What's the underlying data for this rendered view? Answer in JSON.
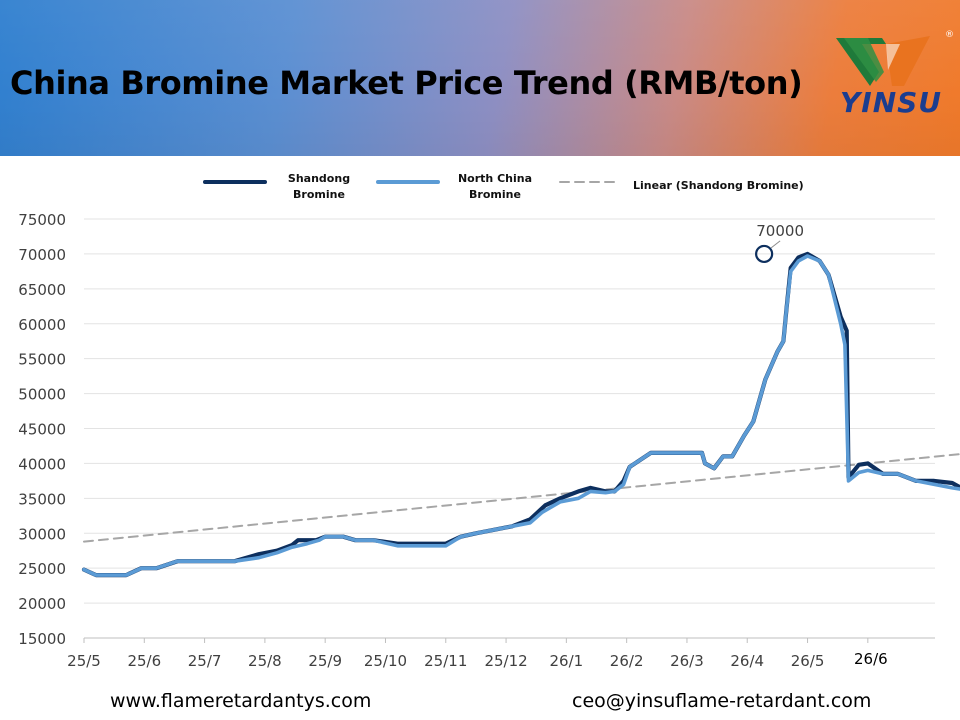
{
  "header": {
    "title": "China Bromine Market Price Trend (RMB/ton)",
    "logo_text": "YINSU",
    "logo_mark": "®",
    "colors": {
      "gradient_left": "#2f7fcf",
      "gradient_right": "#f07a2a",
      "logo_green": "#1f7a3a",
      "logo_orange": "#e9731f",
      "logo_text": "#1b3d8f"
    }
  },
  "footer": {
    "website": "www.flameretardantys.com",
    "email": "ceo@yinsuflame-retardant.com"
  },
  "chart_data": {
    "type": "line",
    "title": "",
    "xlabel": "",
    "ylabel": "",
    "ylim": [
      15000,
      75000
    ],
    "y_ticks": [
      15000,
      20000,
      25000,
      30000,
      35000,
      40000,
      45000,
      50000,
      55000,
      60000,
      65000,
      70000,
      75000
    ],
    "x_tick_labels": [
      "25/5",
      "25/6",
      "25/7",
      "25/8",
      "25/9",
      "25/10",
      "25/11",
      "25/12",
      "26/1",
      "26/2",
      "26/3",
      "26/4",
      "26/5",
      "26/6"
    ],
    "grid": true,
    "legend_position": "top",
    "annotation": {
      "label": "70000",
      "x": 11.28,
      "y": 70000
    },
    "series": [
      {
        "name": "Shandong Bromine",
        "color": "#0d2f5e",
        "points": [
          [
            0,
            24800
          ],
          [
            0.2,
            24000
          ],
          [
            0.7,
            24000
          ],
          [
            0.95,
            25000
          ],
          [
            1.2,
            25000
          ],
          [
            1.55,
            26000
          ],
          [
            2.0,
            26000
          ],
          [
            2.5,
            26000
          ],
          [
            2.9,
            27000
          ],
          [
            3.2,
            27500
          ],
          [
            3.45,
            28300
          ],
          [
            3.55,
            29000
          ],
          [
            3.85,
            29000
          ],
          [
            4.0,
            29500
          ],
          [
            4.3,
            29500
          ],
          [
            4.5,
            29000
          ],
          [
            4.8,
            29000
          ],
          [
            5.2,
            28500
          ],
          [
            5.6,
            28500
          ],
          [
            6.0,
            28500
          ],
          [
            6.25,
            29500
          ],
          [
            6.5,
            30000
          ],
          [
            6.8,
            30500
          ],
          [
            7.1,
            31000
          ],
          [
            7.4,
            32000
          ],
          [
            7.65,
            34000
          ],
          [
            7.9,
            35000
          ],
          [
            8.2,
            36000
          ],
          [
            8.4,
            36500
          ],
          [
            8.65,
            36000
          ],
          [
            8.8,
            36000
          ],
          [
            8.95,
            37500
          ],
          [
            9.05,
            39500
          ],
          [
            9.4,
            41500
          ],
          [
            9.8,
            41500
          ],
          [
            10.1,
            41500
          ],
          [
            10.25,
            41500
          ],
          [
            10.3,
            40000
          ],
          [
            10.45,
            39300
          ],
          [
            10.6,
            41000
          ],
          [
            10.75,
            41000
          ],
          [
            10.95,
            44000
          ],
          [
            11.1,
            46000
          ],
          [
            11.3,
            52000
          ],
          [
            11.5,
            56000
          ],
          [
            11.6,
            57500
          ],
          [
            11.65,
            62000
          ],
          [
            11.72,
            68000
          ],
          [
            11.85,
            69500
          ],
          [
            12.0,
            70000
          ],
          [
            12.2,
            69000
          ],
          [
            12.35,
            67000
          ],
          [
            12.55,
            61000
          ],
          [
            12.65,
            59000
          ],
          [
            12.68,
            38000
          ],
          [
            12.85,
            39800
          ],
          [
            13.0,
            40000
          ],
          [
            13.25,
            38500
          ],
          [
            13.5,
            38500
          ],
          [
            13.8,
            37500
          ],
          [
            14.1,
            37500
          ],
          [
            14.4,
            37200
          ],
          [
            14.55,
            36500
          ],
          [
            14.7,
            36000
          ],
          [
            15.0,
            34000
          ],
          [
            15.2,
            29000
          ]
        ]
      },
      {
        "name": "North China Bromine",
        "color": "#5b9bd5",
        "points": [
          [
            0,
            24800
          ],
          [
            0.2,
            24000
          ],
          [
            0.7,
            24000
          ],
          [
            0.95,
            25000
          ],
          [
            1.2,
            25000
          ],
          [
            1.55,
            26000
          ],
          [
            2.0,
            26000
          ],
          [
            2.5,
            26000
          ],
          [
            2.9,
            26500
          ],
          [
            3.2,
            27200
          ],
          [
            3.45,
            28000
          ],
          [
            3.7,
            28500
          ],
          [
            3.9,
            29000
          ],
          [
            4.0,
            29500
          ],
          [
            4.3,
            29500
          ],
          [
            4.5,
            29000
          ],
          [
            4.8,
            29000
          ],
          [
            5.2,
            28200
          ],
          [
            5.6,
            28200
          ],
          [
            6.0,
            28200
          ],
          [
            6.25,
            29500
          ],
          [
            6.5,
            30000
          ],
          [
            6.8,
            30500
          ],
          [
            7.1,
            31000
          ],
          [
            7.4,
            31500
          ],
          [
            7.6,
            33000
          ],
          [
            7.9,
            34500
          ],
          [
            8.2,
            35000
          ],
          [
            8.4,
            36000
          ],
          [
            8.65,
            35800
          ],
          [
            8.8,
            36000
          ],
          [
            8.95,
            37000
          ],
          [
            9.05,
            39500
          ],
          [
            9.4,
            41500
          ],
          [
            9.8,
            41500
          ],
          [
            10.1,
            41500
          ],
          [
            10.25,
            41500
          ],
          [
            10.3,
            40000
          ],
          [
            10.45,
            39300
          ],
          [
            10.6,
            41000
          ],
          [
            10.75,
            41000
          ],
          [
            10.95,
            44000
          ],
          [
            11.1,
            46000
          ],
          [
            11.3,
            52000
          ],
          [
            11.5,
            56000
          ],
          [
            11.6,
            57500
          ],
          [
            11.65,
            62000
          ],
          [
            11.72,
            67500
          ],
          [
            11.85,
            69000
          ],
          [
            12.0,
            69700
          ],
          [
            12.2,
            69000
          ],
          [
            12.35,
            67000
          ],
          [
            12.55,
            60000
          ],
          [
            12.62,
            57000
          ],
          [
            12.68,
            37500
          ],
          [
            12.85,
            38700
          ],
          [
            13.0,
            39000
          ],
          [
            13.25,
            38500
          ],
          [
            13.5,
            38500
          ],
          [
            13.8,
            37500
          ],
          [
            14.1,
            37000
          ],
          [
            14.4,
            36500
          ],
          [
            14.55,
            36300
          ],
          [
            14.7,
            35800
          ],
          [
            15.0,
            33500
          ],
          [
            15.2,
            28500
          ]
        ]
      },
      {
        "name": "Linear (Shandong Bromine)",
        "color": "#a6a6a6",
        "dashed": true,
        "points": [
          [
            0,
            28800
          ],
          [
            15.2,
            41900
          ]
        ]
      }
    ]
  }
}
